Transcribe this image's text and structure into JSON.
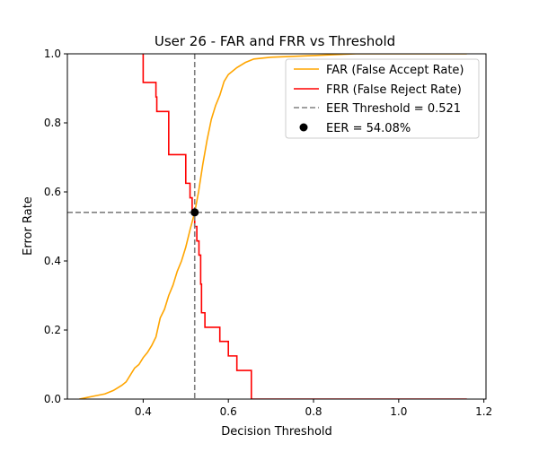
{
  "chart_data": {
    "type": "line",
    "title": "User 26 - FAR and FRR vs Threshold",
    "xlabel": "Decision Threshold",
    "ylabel": "Error Rate",
    "xlim": [
      0.222,
      1.205
    ],
    "ylim": [
      0.0,
      1.0
    ],
    "xticks": [
      0.4,
      0.6,
      0.8,
      1.0,
      1.2
    ],
    "xtick_labels": [
      "0.4",
      "0.6",
      "0.8",
      "1.0",
      "1.2"
    ],
    "yticks": [
      0.0,
      0.2,
      0.4,
      0.6,
      0.8,
      1.0
    ],
    "ytick_labels": [
      "0.0",
      "0.2",
      "0.4",
      "0.6",
      "0.8",
      "1.0"
    ],
    "grid": false,
    "legend_position": "top-right",
    "series": [
      {
        "name": "FAR (False Accept Rate)",
        "color": "#ffa500",
        "style": "solid",
        "points": [
          [
            0.25,
            0.0
          ],
          [
            0.27,
            0.005
          ],
          [
            0.29,
            0.01
          ],
          [
            0.31,
            0.015
          ],
          [
            0.33,
            0.025
          ],
          [
            0.35,
            0.04
          ],
          [
            0.36,
            0.05
          ],
          [
            0.37,
            0.07
          ],
          [
            0.38,
            0.09
          ],
          [
            0.39,
            0.1
          ],
          [
            0.4,
            0.12
          ],
          [
            0.41,
            0.135
          ],
          [
            0.42,
            0.155
          ],
          [
            0.43,
            0.18
          ],
          [
            0.44,
            0.235
          ],
          [
            0.45,
            0.26
          ],
          [
            0.46,
            0.3
          ],
          [
            0.47,
            0.33
          ],
          [
            0.48,
            0.37
          ],
          [
            0.49,
            0.4
          ],
          [
            0.5,
            0.44
          ],
          [
            0.51,
            0.49
          ],
          [
            0.521,
            0.5408
          ],
          [
            0.53,
            0.6
          ],
          [
            0.54,
            0.68
          ],
          [
            0.55,
            0.75
          ],
          [
            0.56,
            0.81
          ],
          [
            0.57,
            0.85
          ],
          [
            0.58,
            0.88
          ],
          [
            0.59,
            0.92
          ],
          [
            0.6,
            0.94
          ],
          [
            0.62,
            0.96
          ],
          [
            0.64,
            0.975
          ],
          [
            0.66,
            0.985
          ],
          [
            0.7,
            0.99
          ],
          [
            0.8,
            0.995
          ],
          [
            0.9,
            1.0
          ],
          [
            1.16,
            1.0
          ]
        ]
      },
      {
        "name": "FRR (False Reject Rate)",
        "color": "#ff0000",
        "style": "step",
        "points": [
          [
            0.4,
            1.0
          ],
          [
            0.4,
            0.917
          ],
          [
            0.43,
            0.917
          ],
          [
            0.43,
            0.875
          ],
          [
            0.432,
            0.875
          ],
          [
            0.432,
            0.833
          ],
          [
            0.46,
            0.833
          ],
          [
            0.46,
            0.708
          ],
          [
            0.5,
            0.708
          ],
          [
            0.5,
            0.625
          ],
          [
            0.51,
            0.625
          ],
          [
            0.51,
            0.583
          ],
          [
            0.515,
            0.583
          ],
          [
            0.515,
            0.5408
          ],
          [
            0.521,
            0.5408
          ],
          [
            0.521,
            0.5
          ],
          [
            0.526,
            0.5
          ],
          [
            0.526,
            0.458
          ],
          [
            0.531,
            0.458
          ],
          [
            0.531,
            0.417
          ],
          [
            0.535,
            0.417
          ],
          [
            0.535,
            0.333
          ],
          [
            0.537,
            0.333
          ],
          [
            0.537,
            0.25
          ],
          [
            0.545,
            0.25
          ],
          [
            0.545,
            0.208
          ],
          [
            0.58,
            0.208
          ],
          [
            0.58,
            0.167
          ],
          [
            0.6,
            0.167
          ],
          [
            0.6,
            0.125
          ],
          [
            0.62,
            0.125
          ],
          [
            0.62,
            0.083
          ],
          [
            0.654,
            0.083
          ],
          [
            0.654,
            0.0
          ],
          [
            1.16,
            0.0
          ]
        ]
      }
    ],
    "eer": {
      "threshold": 0.521,
      "rate": 0.5408,
      "threshold_label": "EER Threshold = 0.521",
      "point_label": "EER = 54.08%",
      "line_color": "#808080",
      "point_color": "#000000"
    }
  }
}
